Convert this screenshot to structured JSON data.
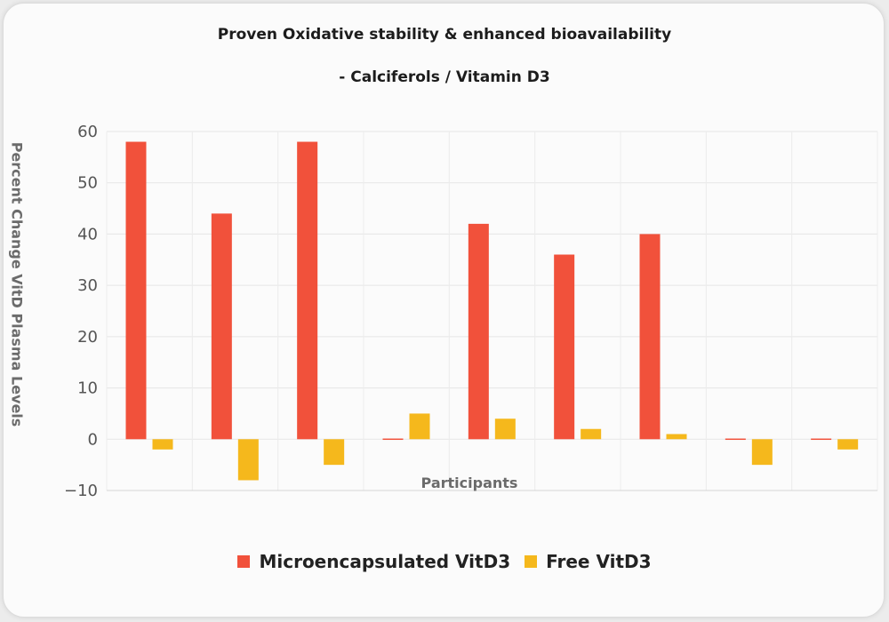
{
  "chart_data": {
    "type": "bar",
    "title": "Proven Oxidative stability & enhanced bioavailability",
    "subtitle": "- Calciferols / Vitamin D3",
    "xlabel": "Participants",
    "ylabel": "Percent Change VitD Plasma Levels",
    "categories": [
      "",
      "",
      "",
      "",
      "",
      "",
      "",
      "",
      ""
    ],
    "series": [
      {
        "name": "Microencapsulated VitD3",
        "color": "#f1513b",
        "values": [
          58,
          44,
          58,
          0,
          42,
          36,
          40,
          0,
          0
        ]
      },
      {
        "name": "Free VitD3",
        "color": "#f5b81c",
        "values": [
          -2,
          -8,
          -5,
          5,
          4,
          2,
          1,
          -5,
          -2
        ]
      }
    ],
    "ylim": [
      -10,
      60
    ],
    "yticks": [
      -10,
      0,
      10,
      20,
      30,
      40,
      50,
      60
    ],
    "grid": true,
    "legend": "bottom-center"
  }
}
